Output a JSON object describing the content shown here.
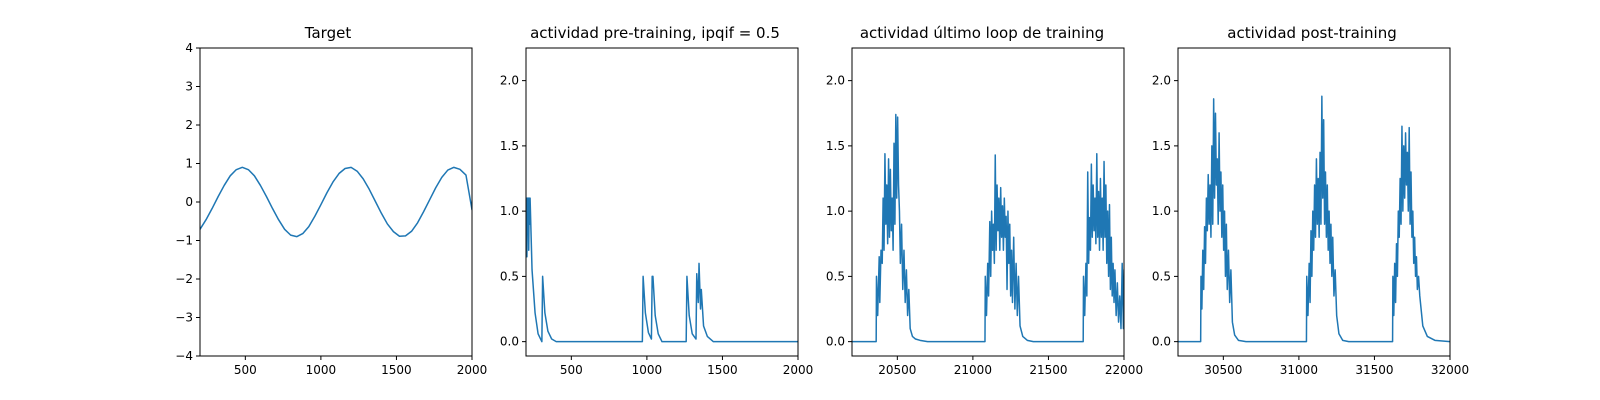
{
  "colors": {
    "series": "#1f77b4",
    "frame": "#000000",
    "background": "#ffffff"
  },
  "chart_data": [
    {
      "type": "line",
      "title": "Target",
      "xlim": [
        200,
        2000
      ],
      "ylim": [
        -4,
        4
      ],
      "xticks": [
        500,
        1000,
        1500,
        2000
      ],
      "yticks": [
        -4,
        -3,
        -2,
        -1,
        0,
        1,
        2,
        3,
        4
      ],
      "xtick_labels": [
        "500",
        "1000",
        "1500",
        "2000"
      ],
      "ytick_labels": [
        "−4",
        "−3",
        "−2",
        "−1",
        "0",
        "1",
        "2",
        "3",
        "4"
      ],
      "grid": false,
      "series": [
        {
          "x": [
            200,
            240,
            280,
            320,
            360,
            400,
            440,
            480,
            520,
            560,
            600,
            640,
            680,
            720,
            760,
            800,
            840,
            880,
            920,
            960,
            1000,
            1040,
            1080,
            1120,
            1160,
            1200,
            1240,
            1280,
            1320,
            1360,
            1400,
            1440,
            1480,
            1520,
            1560,
            1600,
            1640,
            1680,
            1720,
            1760,
            1800,
            1840,
            1880,
            1920,
            1960,
            2000
          ],
          "y": [
            -0.71,
            -0.46,
            -0.17,
            0.14,
            0.43,
            0.68,
            0.84,
            0.9,
            0.84,
            0.68,
            0.43,
            0.14,
            -0.17,
            -0.46,
            -0.71,
            -0.86,
            -0.9,
            -0.82,
            -0.64,
            -0.37,
            -0.07,
            0.24,
            0.52,
            0.74,
            0.87,
            0.9,
            0.8,
            0.6,
            0.33,
            0.02,
            -0.29,
            -0.57,
            -0.77,
            -0.89,
            -0.88,
            -0.76,
            -0.54,
            -0.25,
            0.06,
            0.37,
            0.64,
            0.83,
            0.9,
            0.85,
            0.7,
            -0.2
          ]
        }
      ]
    },
    {
      "type": "line",
      "title": "actividad pre-training, ipqif = 0.5",
      "xlim": [
        200,
        2000
      ],
      "ylim": [
        -0.11,
        2.25
      ],
      "xticks": [
        500,
        1000,
        1500,
        2000
      ],
      "yticks": [
        0.0,
        0.5,
        1.0,
        1.5,
        2.0
      ],
      "xtick_labels": [
        "500",
        "1000",
        "1500",
        "2000"
      ],
      "ytick_labels": [
        "0.0",
        "0.5",
        "1.0",
        "1.5",
        "2.0"
      ],
      "grid": false,
      "series": [
        {
          "x": [
            200,
            203,
            206,
            209,
            212,
            215,
            218,
            221,
            224,
            227,
            240,
            260,
            280,
            305,
            310,
            325,
            345,
            370,
            400,
            970,
            975,
            990,
            1010,
            1030,
            1035,
            1040,
            1055,
            1075,
            1100,
            1260,
            1265,
            1280,
            1300,
            1325,
            1330,
            1340,
            1345,
            1355,
            1360,
            1375,
            1400,
            1440,
            2000
          ],
          "y": [
            0.95,
            1.1,
            0.65,
            1.1,
            0.85,
            1.1,
            0.7,
            1.1,
            0.9,
            1.1,
            0.55,
            0.22,
            0.06,
            0.0,
            0.5,
            0.22,
            0.08,
            0.02,
            0.0,
            0.0,
            0.5,
            0.22,
            0.07,
            0.02,
            0.5,
            0.5,
            0.2,
            0.06,
            0.0,
            0.0,
            0.5,
            0.2,
            0.06,
            0.02,
            0.52,
            0.3,
            0.6,
            0.25,
            0.4,
            0.12,
            0.04,
            0.0,
            0.0
          ]
        }
      ]
    },
    {
      "type": "line",
      "title": "actividad último loop de training",
      "xlim": [
        20200,
        22000
      ],
      "ylim": [
        -0.11,
        2.25
      ],
      "xticks": [
        20500,
        21000,
        21500,
        22000
      ],
      "yticks": [
        0.0,
        0.5,
        1.0,
        1.5,
        2.0
      ],
      "xtick_labels": [
        "20500",
        "21000",
        "21500",
        "22000"
      ],
      "ytick_labels": [
        "0.0",
        "0.5",
        "1.0",
        "1.5",
        "2.0"
      ],
      "grid": false,
      "series": [
        {
          "x": [
            20200,
            20360,
            20362,
            20370,
            20380,
            20384,
            20392,
            20400,
            20406,
            20412,
            20418,
            20424,
            20430,
            20436,
            20442,
            20448,
            20454,
            20460,
            20466,
            20472,
            20478,
            20484,
            20490,
            20496,
            20502,
            20508,
            20514,
            20520,
            20528,
            20536,
            20544,
            20552,
            20560,
            20568,
            20576,
            20585,
            20600,
            20620,
            20650,
            20700,
            21080,
            21082,
            21090,
            21098,
            21104,
            21112,
            21118,
            21124,
            21130,
            21136,
            21142,
            21148,
            21154,
            21160,
            21166,
            21172,
            21178,
            21184,
            21190,
            21196,
            21202,
            21208,
            21214,
            21220,
            21226,
            21232,
            21238,
            21244,
            21250,
            21256,
            21262,
            21270,
            21278,
            21286,
            21294,
            21302,
            21312,
            21330,
            21360,
            21400,
            21730,
            21732,
            21740,
            21748,
            21754,
            21760,
            21766,
            21772,
            21778,
            21784,
            21790,
            21796,
            21802,
            21808,
            21814,
            21820,
            21826,
            21832,
            21838,
            21844,
            21850,
            21856,
            21862,
            21868,
            21874,
            21880,
            21886,
            21892,
            21898,
            21904,
            21910,
            21916,
            21922,
            21928,
            21934,
            21940,
            21948,
            21956,
            21964,
            21972,
            21980,
            21988,
            21996,
            22000
          ],
          "y": [
            0.0,
            0.0,
            0.5,
            0.2,
            0.65,
            0.3,
            0.7,
            0.6,
            1.1,
            0.7,
            1.44,
            0.9,
            1.2,
            0.75,
            1.4,
            0.8,
            1.32,
            0.85,
            1.1,
            0.7,
            1.52,
            0.9,
            1.74,
            1.1,
            1.72,
            1.2,
            1.0,
            0.6,
            0.9,
            0.4,
            0.7,
            0.3,
            0.55,
            0.2,
            0.4,
            0.1,
            0.04,
            0.02,
            0.01,
            0.0,
            0.0,
            0.5,
            0.2,
            0.6,
            0.35,
            0.92,
            0.5,
            1.0,
            0.7,
            0.9,
            0.6,
            1.43,
            0.7,
            1.2,
            0.85,
            1.1,
            0.7,
            1.18,
            0.8,
            1.04,
            0.7,
            1.1,
            0.8,
            0.96,
            0.4,
            1.0,
            0.6,
            0.9,
            0.35,
            0.7,
            0.3,
            0.8,
            0.25,
            0.6,
            0.2,
            0.5,
            0.12,
            0.04,
            0.01,
            0.0,
            0.0,
            0.5,
            0.2,
            0.6,
            0.35,
            1.3,
            0.6,
            0.95,
            0.7,
            1.36,
            0.8,
            1.2,
            0.85,
            1.1,
            0.75,
            1.44,
            0.8,
            1.15,
            0.7,
            1.25,
            0.8,
            1.1,
            0.7,
            1.38,
            0.8,
            1.2,
            0.6,
            1.0,
            0.5,
            1.05,
            0.4,
            0.8,
            0.35,
            0.6,
            0.3,
            0.55,
            0.2,
            0.45,
            0.15,
            0.35,
            0.1,
            0.6,
            0.1,
            0.55
          ]
        }
      ]
    },
    {
      "type": "line",
      "title": "actividad post-training",
      "xlim": [
        30200,
        32000
      ],
      "ylim": [
        -0.11,
        2.25
      ],
      "xticks": [
        30500,
        31000,
        31500,
        32000
      ],
      "yticks": [
        0.0,
        0.5,
        1.0,
        1.5,
        2.0
      ],
      "xtick_labels": [
        "30500",
        "31000",
        "31500",
        "32000"
      ],
      "ytick_labels": [
        "0.0",
        "0.5",
        "1.0",
        "1.5",
        "2.0"
      ],
      "grid": false,
      "series": [
        {
          "x": [
            30200,
            30350,
            30352,
            30358,
            30364,
            30370,
            30376,
            30382,
            30388,
            30394,
            30400,
            30406,
            30412,
            30418,
            30424,
            30430,
            30436,
            30442,
            30448,
            30454,
            30460,
            30466,
            30472,
            30478,
            30484,
            30490,
            30496,
            30502,
            30508,
            30514,
            30520,
            30526,
            30534,
            30542,
            30550,
            30560,
            30575,
            30600,
            30650,
            31050,
            31052,
            31060,
            31068,
            31074,
            31080,
            31086,
            31092,
            31098,
            31104,
            31110,
            31116,
            31122,
            31128,
            31134,
            31140,
            31146,
            31152,
            31158,
            31164,
            31170,
            31176,
            31182,
            31188,
            31194,
            31200,
            31206,
            31212,
            31218,
            31224,
            31232,
            31240,
            31250,
            31265,
            31290,
            31330,
            31620,
            31622,
            31628,
            31634,
            31640,
            31646,
            31652,
            31658,
            31664,
            31670,
            31676,
            31682,
            31688,
            31694,
            31700,
            31706,
            31712,
            31718,
            31724,
            31730,
            31736,
            31742,
            31748,
            31754,
            31760,
            31766,
            31772,
            31778,
            31784,
            31792,
            31800,
            31820,
            31850,
            31900,
            32000
          ],
          "y": [
            0.0,
            0.0,
            0.5,
            0.25,
            0.7,
            0.4,
            0.88,
            0.6,
            1.1,
            0.85,
            1.28,
            0.9,
            1.2,
            0.8,
            1.5,
            0.9,
            1.86,
            1.1,
            1.75,
            1.2,
            1.4,
            0.9,
            1.6,
            1.0,
            1.3,
            0.8,
            1.2,
            0.7,
            1.0,
            0.5,
            0.9,
            0.4,
            0.7,
            0.3,
            0.55,
            0.15,
            0.05,
            0.01,
            0.0,
            0.0,
            0.5,
            0.2,
            0.6,
            0.3,
            0.85,
            0.5,
            1.0,
            0.7,
            1.2,
            0.8,
            1.4,
            0.9,
            1.25,
            0.8,
            1.45,
            0.9,
            1.88,
            1.1,
            1.7,
            0.9,
            1.3,
            0.8,
            1.2,
            0.7,
            1.0,
            0.6,
            0.9,
            0.5,
            0.8,
            0.35,
            0.55,
            0.2,
            0.06,
            0.01,
            0.0,
            0.0,
            0.5,
            0.2,
            0.6,
            0.3,
            0.75,
            0.5,
            1.0,
            0.8,
            1.25,
            0.9,
            1.65,
            1.0,
            1.5,
            1.1,
            1.6,
            1.2,
            1.45,
            1.0,
            1.64,
            0.9,
            1.3,
            0.8,
            1.0,
            0.6,
            0.8,
            0.5,
            0.65,
            0.4,
            0.5,
            0.35,
            0.12,
            0.04,
            0.01,
            0.0
          ]
        }
      ]
    }
  ]
}
